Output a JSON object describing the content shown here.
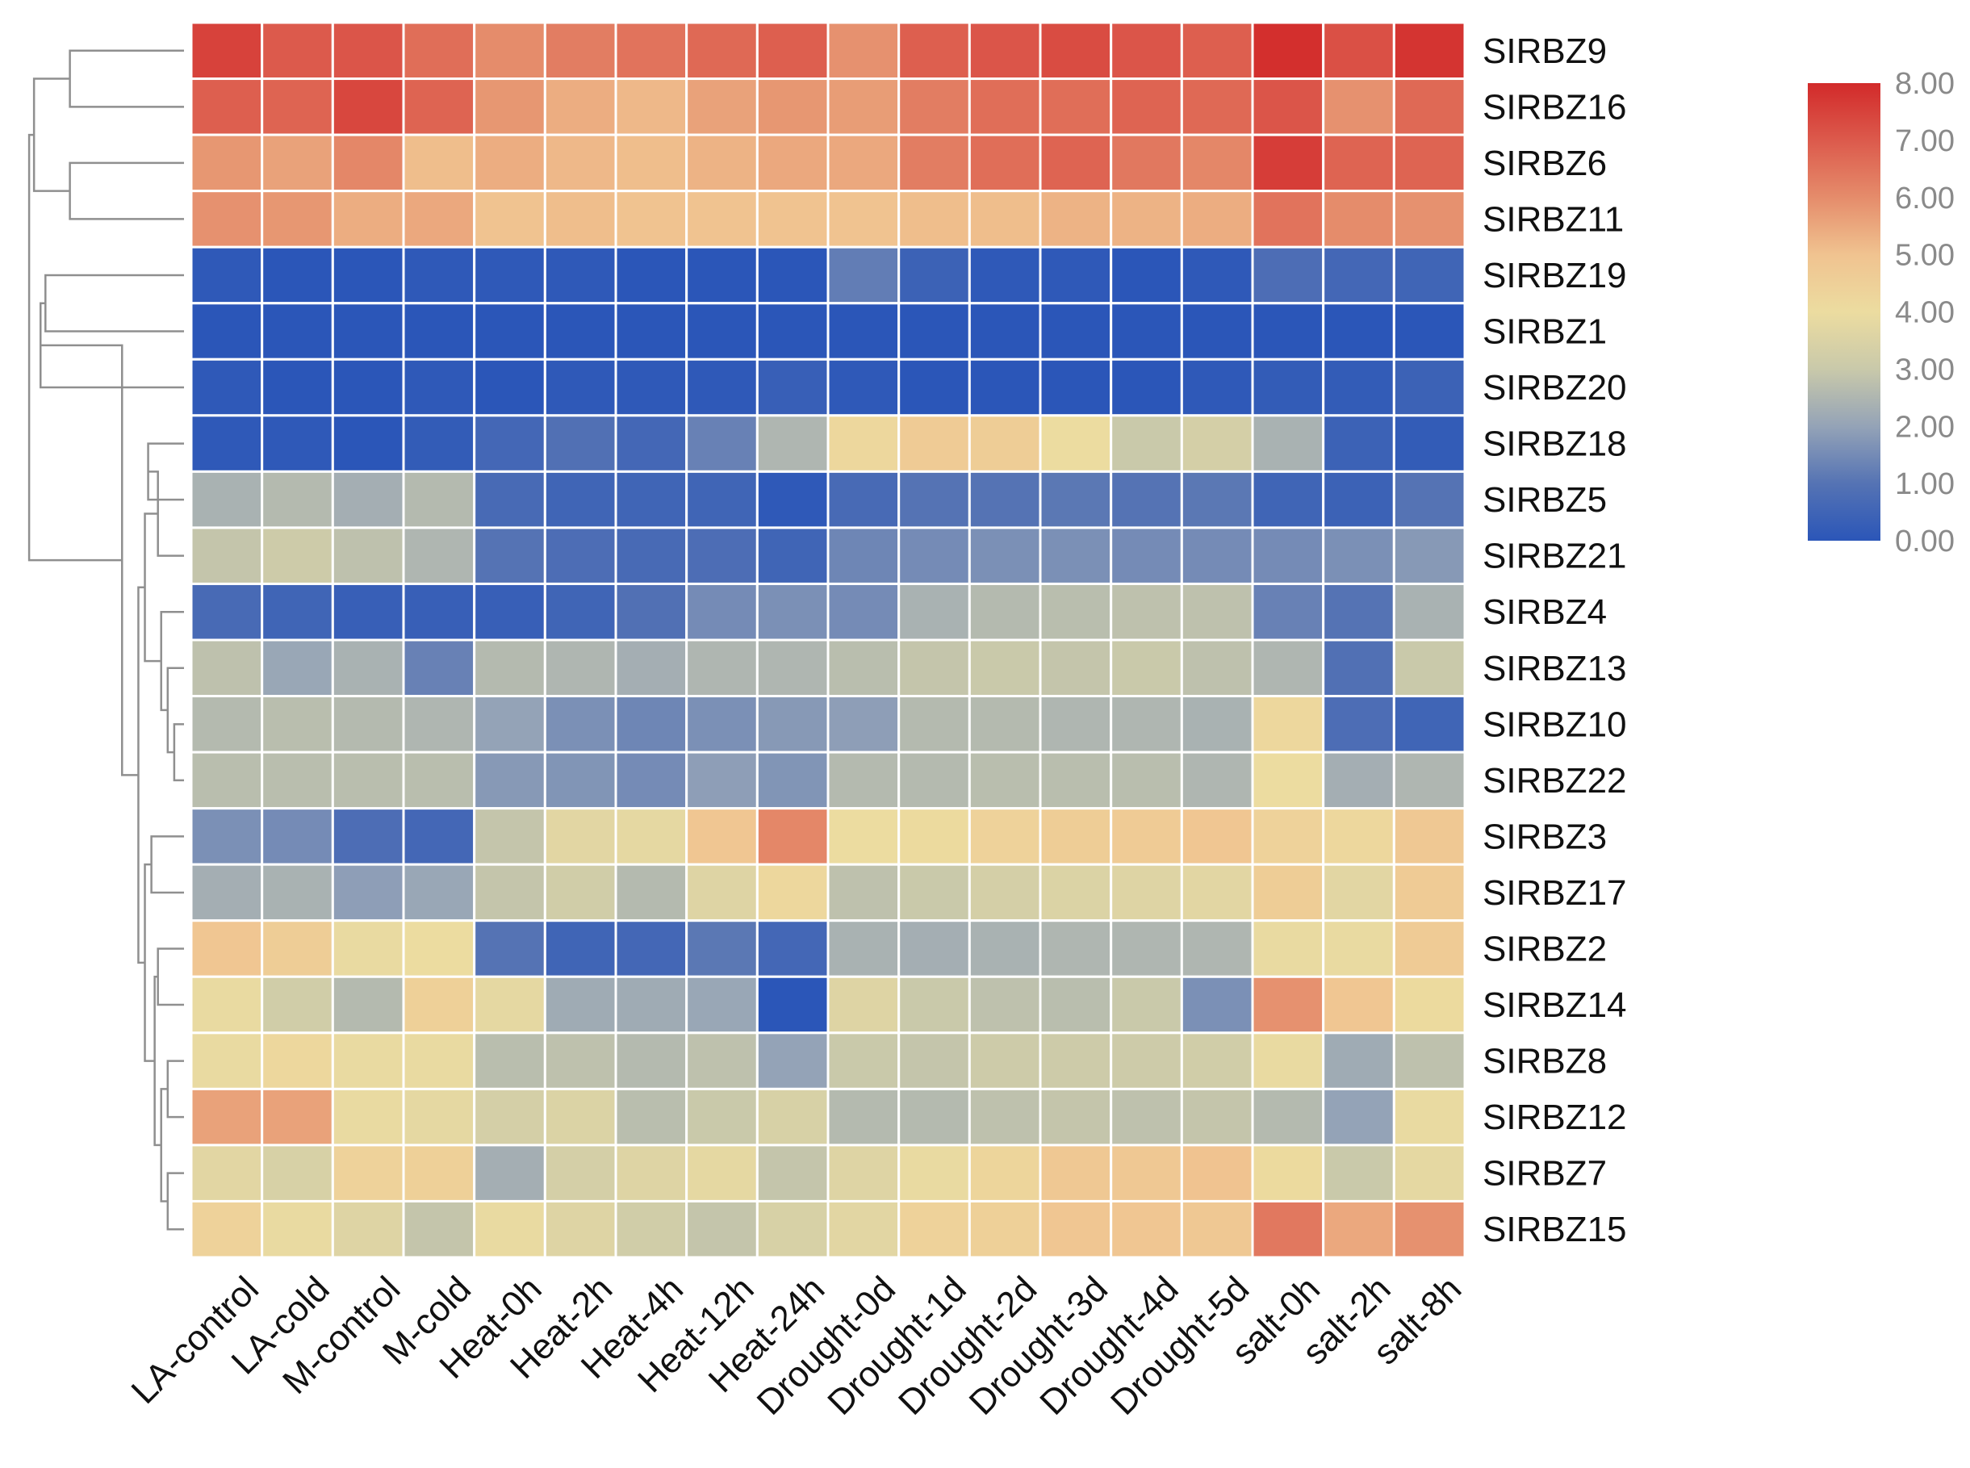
{
  "chart_data": {
    "type": "heatmap",
    "title": "",
    "columns": [
      "LA-control",
      "LA-cold",
      "M-control",
      "M-cold",
      "Heat-0h",
      "Heat-2h",
      "Heat-4h",
      "Heat-12h",
      "Heat-24h",
      "Drought-0d",
      "Drought-1d",
      "Drought-2d",
      "Drought-3d",
      "Drought-4d",
      "Drought-5d",
      "salt-0h",
      "salt-2h",
      "salt-8h"
    ],
    "rows": [
      "SIRBZ9",
      "SIRBZ16",
      "SIRBZ6",
      "SIRBZ11",
      "SIRBZ19",
      "SIRBZ1",
      "SIRBZ20",
      "SIRBZ18",
      "SIRBZ5",
      "SIRBZ21",
      "SIRBZ4",
      "SIRBZ13",
      "SIRBZ10",
      "SIRBZ22",
      "SIRBZ3",
      "SIRBZ17",
      "SIRBZ2",
      "SIRBZ14",
      "SIRBZ8",
      "SIRBZ12",
      "SIRBZ7",
      "SIRBZ15"
    ],
    "values": [
      [
        7.5,
        7.0,
        7.1,
        6.6,
        6.0,
        6.3,
        6.5,
        6.7,
        6.9,
        5.9,
        6.9,
        7.1,
        7.3,
        7.1,
        6.9,
        7.9,
        7.2,
        7.8
      ],
      [
        6.9,
        6.8,
        7.4,
        6.8,
        5.8,
        5.4,
        5.2,
        5.6,
        5.8,
        5.7,
        6.3,
        6.6,
        6.6,
        6.8,
        6.7,
        7.1,
        5.9,
        6.7
      ],
      [
        5.8,
        5.6,
        6.1,
        5.1,
        5.4,
        5.2,
        5.1,
        5.3,
        5.5,
        5.5,
        6.3,
        6.6,
        6.8,
        6.4,
        6.1,
        7.6,
        6.8,
        6.8
      ],
      [
        5.9,
        5.8,
        5.4,
        5.5,
        5.0,
        5.1,
        5.0,
        5.0,
        5.0,
        5.0,
        5.1,
        5.1,
        5.3,
        5.3,
        5.4,
        6.5,
        6.0,
        5.9
      ],
      [
        0.1,
        0.0,
        0.0,
        0.1,
        0.1,
        0.1,
        0.0,
        0.0,
        0.0,
        1.2,
        0.4,
        0.1,
        0.1,
        0.0,
        0.1,
        0.8,
        0.6,
        0.5
      ],
      [
        0.0,
        0.0,
        0.0,
        0.0,
        0.0,
        0.0,
        0.0,
        0.0,
        0.0,
        0.0,
        0.0,
        0.0,
        0.0,
        0.0,
        0.0,
        0.0,
        0.0,
        0.0
      ],
      [
        0.1,
        0.0,
        0.0,
        0.1,
        0.0,
        0.1,
        0.1,
        0.1,
        0.3,
        0.1,
        0.0,
        0.0,
        0.0,
        0.0,
        0.1,
        0.2,
        0.2,
        0.4
      ],
      [
        0.1,
        0.1,
        0.0,
        0.2,
        0.6,
        0.9,
        0.6,
        1.3,
        2.5,
        4.2,
        4.7,
        4.6,
        4.0,
        3.0,
        3.3,
        2.4,
        0.4,
        0.2
      ],
      [
        2.4,
        2.6,
        2.3,
        2.6,
        0.7,
        0.5,
        0.5,
        0.5,
        0.1,
        0.7,
        1.0,
        1.0,
        1.1,
        1.0,
        1.1,
        0.5,
        0.4,
        1.0
      ],
      [
        2.9,
        3.1,
        2.8,
        2.5,
        1.0,
        0.8,
        0.7,
        0.8,
        0.5,
        1.4,
        1.5,
        1.6,
        1.6,
        1.5,
        1.5,
        1.5,
        1.6,
        1.8
      ],
      [
        0.7,
        0.5,
        0.3,
        0.3,
        0.3,
        0.5,
        0.9,
        1.5,
        1.6,
        1.5,
        2.4,
        2.6,
        2.7,
        2.8,
        2.8,
        1.3,
        1.0,
        2.4
      ],
      [
        2.8,
        2.1,
        2.4,
        1.3,
        2.6,
        2.5,
        2.3,
        2.5,
        2.5,
        2.7,
        2.9,
        3.0,
        2.9,
        3.0,
        2.8,
        2.5,
        0.9,
        3.0
      ],
      [
        2.6,
        2.7,
        2.6,
        2.5,
        2.0,
        1.6,
        1.4,
        1.6,
        1.8,
        1.9,
        2.6,
        2.6,
        2.5,
        2.5,
        2.4,
        4.2,
        0.8,
        0.5
      ],
      [
        2.7,
        2.7,
        2.7,
        2.7,
        1.8,
        1.7,
        1.5,
        1.9,
        1.7,
        2.6,
        2.6,
        2.7,
        2.7,
        2.7,
        2.5,
        4.0,
        2.3,
        2.5
      ],
      [
        1.6,
        1.5,
        0.8,
        0.6,
        2.9,
        3.7,
        3.8,
        4.9,
        6.1,
        4.0,
        4.1,
        4.4,
        4.6,
        4.7,
        4.9,
        4.4,
        4.2,
        4.8
      ],
      [
        2.3,
        2.4,
        1.9,
        2.1,
        2.9,
        3.2,
        2.6,
        3.6,
        4.2,
        2.8,
        3.0,
        3.3,
        3.5,
        3.6,
        3.7,
        4.6,
        3.7,
        4.7
      ],
      [
        4.9,
        4.6,
        3.9,
        4.0,
        1.0,
        0.5,
        0.6,
        1.1,
        0.6,
        2.4,
        2.3,
        2.4,
        2.5,
        2.5,
        2.5,
        3.9,
        3.9,
        4.7
      ],
      [
        3.9,
        3.2,
        2.6,
        4.5,
        3.8,
        2.2,
        2.2,
        2.1,
        0.0,
        3.6,
        3.0,
        2.8,
        2.7,
        3.0,
        1.6,
        5.9,
        4.9,
        4.1
      ],
      [
        3.9,
        4.2,
        3.9,
        3.9,
        2.7,
        2.8,
        2.6,
        2.8,
        2.0,
        3.0,
        2.9,
        3.1,
        3.1,
        3.1,
        3.2,
        3.9,
        2.2,
        2.8
      ],
      [
        5.6,
        5.6,
        3.9,
        3.8,
        3.3,
        3.5,
        2.7,
        3.0,
        3.4,
        2.6,
        2.6,
        2.8,
        2.9,
        2.8,
        2.9,
        2.6,
        2.0,
        3.9
      ],
      [
        3.7,
        3.4,
        4.4,
        4.5,
        2.3,
        3.3,
        3.6,
        3.8,
        2.9,
        3.6,
        3.9,
        4.3,
        4.8,
        4.8,
        5.0,
        4.1,
        3.0,
        3.8
      ],
      [
        4.4,
        3.9,
        3.6,
        2.9,
        3.9,
        3.6,
        3.2,
        2.9,
        3.4,
        3.7,
        4.4,
        4.5,
        4.9,
        4.9,
        4.8,
        6.4,
        5.5,
        5.9
      ]
    ],
    "color_scale": {
      "min": 0,
      "max": 8,
      "stops": [
        {
          "value": 0,
          "color": "#2b56b8"
        },
        {
          "value": 1,
          "color": "#5573b4"
        },
        {
          "value": 2,
          "color": "#94a3b7"
        },
        {
          "value": 3,
          "color": "#c9c9aa"
        },
        {
          "value": 4,
          "color": "#ecdca0"
        },
        {
          "value": 5,
          "color": "#f0c390"
        },
        {
          "value": 6,
          "color": "#e58c6b"
        },
        {
          "value": 7,
          "color": "#dc5a4c"
        },
        {
          "value": 8,
          "color": "#d22a2a"
        }
      ],
      "tick_labels": [
        "0.00",
        "1.00",
        "2.00",
        "3.00",
        "4.00",
        "5.00",
        "6.00",
        "7.00",
        "8.00"
      ]
    },
    "legend_position": "top-right",
    "row_dendrogram": {
      "leaves": 22,
      "merges": [
        [
          0,
          1,
          0.7
        ],
        [
          2,
          3,
          0.7
        ],
        [
          22,
          23,
          0.92
        ],
        [
          4,
          5,
          0.85
        ],
        [
          25,
          6,
          0.88
        ],
        [
          7,
          8,
          0.22
        ],
        [
          9,
          27,
          0.16
        ],
        [
          12,
          13,
          0.06
        ],
        [
          11,
          29,
          0.1
        ],
        [
          10,
          30,
          0.14
        ],
        [
          28,
          31,
          0.24
        ],
        [
          14,
          15,
          0.2
        ],
        [
          16,
          17,
          0.16
        ],
        [
          18,
          19,
          0.1
        ],
        [
          20,
          21,
          0.1
        ],
        [
          35,
          36,
          0.14
        ],
        [
          34,
          37,
          0.18
        ],
        [
          33,
          38,
          0.24
        ],
        [
          32,
          39,
          0.28
        ],
        [
          26,
          40,
          0.38
        ],
        [
          24,
          41,
          0.95
        ]
      ]
    }
  }
}
